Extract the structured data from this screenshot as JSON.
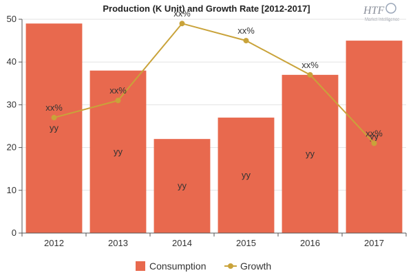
{
  "logo": {
    "text": "HTF",
    "subtitle": "Market Intelligence"
  },
  "chart_data": {
    "type": "bar",
    "title": "Production (K Unit) and Growth Rate [2012-2017]",
    "categories": [
      "2012",
      "2013",
      "2014",
      "2015",
      "2016",
      "2017"
    ],
    "ylim": [
      0,
      50
    ],
    "yticks": [
      0,
      10,
      20,
      30,
      40,
      50
    ],
    "grid": true,
    "legend_position": "bottom",
    "series": [
      {
        "name": "Consumption",
        "type": "bar",
        "color": "#e8694e",
        "values": [
          49,
          38,
          22,
          27,
          37,
          45
        ],
        "labels": [
          "yy",
          "yy",
          "yy",
          "yy",
          "yy",
          "yy"
        ]
      },
      {
        "name": "Growth",
        "type": "line",
        "color": "#c9a33a",
        "values": [
          27,
          31,
          49,
          45,
          37,
          21
        ],
        "labels": [
          "xx%",
          "xx%",
          "xx%",
          "xx%",
          "xx%",
          "xx%"
        ]
      }
    ]
  }
}
